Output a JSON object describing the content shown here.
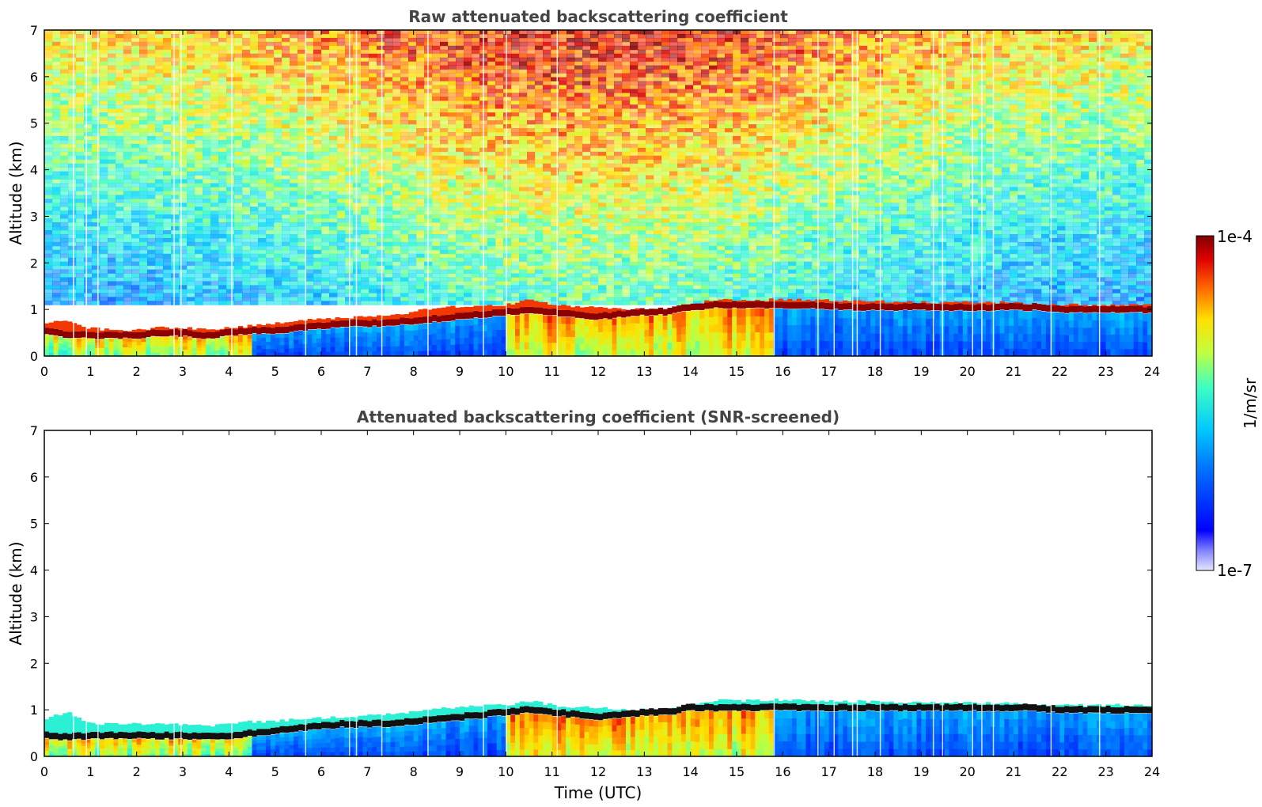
{
  "chart_data": [
    {
      "type": "heatmap",
      "title": "Raw attenuated backscattering coefficient",
      "ylabel": "Altitude (km)",
      "xlabel": "",
      "xlim": [
        0,
        24
      ],
      "ylim": [
        0,
        7
      ],
      "x_ticks": [
        "0",
        "1",
        "2",
        "3",
        "4",
        "5",
        "6",
        "7",
        "8",
        "9",
        "10",
        "11",
        "12",
        "13",
        "14",
        "15",
        "16",
        "17",
        "18",
        "19",
        "20",
        "21",
        "22",
        "23",
        "24"
      ],
      "y_ticks": [
        "0",
        "1",
        "2",
        "3",
        "4",
        "5",
        "6",
        "7"
      ],
      "colormap": "jet",
      "color_scale": "log",
      "layer_top_km": [
        0.7,
        0.75,
        0.6,
        0.55,
        0.55,
        0.62,
        0.6,
        0.58,
        0.6,
        0.65,
        0.7,
        0.78,
        0.8,
        0.82,
        0.85,
        0.85,
        0.95,
        1.05,
        1.05,
        1.1,
        1.1,
        1.2,
        1.1,
        1.05,
        1.05,
        1.0,
        1.0,
        1.0,
        1.1,
        1.2,
        1.2,
        1.2,
        1.22,
        1.2,
        1.2,
        1.18,
        1.18,
        1.15,
        1.15,
        1.15,
        1.15,
        1.15,
        1.15,
        1.1,
        1.1,
        1.1,
        1.1,
        1.1,
        1.1
      ],
      "layer_peak_km": [
        0.55,
        0.45,
        0.45,
        0.45,
        0.45,
        0.5,
        0.5,
        0.45,
        0.5,
        0.55,
        0.55,
        0.6,
        0.65,
        0.7,
        0.7,
        0.72,
        0.75,
        0.8,
        0.85,
        0.9,
        0.95,
        1.0,
        0.95,
        0.9,
        0.85,
        0.9,
        0.95,
        0.95,
        1.05,
        1.1,
        1.1,
        1.1,
        1.1,
        1.1,
        1.08,
        1.05,
        1.05,
        1.05,
        1.05,
        1.05,
        1.05,
        1.05,
        1.05,
        1.05,
        1.0,
        1.0,
        1.0,
        1.0,
        1.0
      ],
      "noise_present": true
    },
    {
      "type": "heatmap",
      "title": "Attenuated backscattering coefficient (SNR-screened)",
      "ylabel": "Altitude (km)",
      "xlabel": "Time (UTC)",
      "xlim": [
        0,
        24
      ],
      "ylim": [
        0,
        7
      ],
      "x_ticks": [
        "0",
        "1",
        "2",
        "3",
        "4",
        "5",
        "6",
        "7",
        "8",
        "9",
        "10",
        "11",
        "12",
        "13",
        "14",
        "15",
        "16",
        "17",
        "18",
        "19",
        "20",
        "21",
        "22",
        "23",
        "24"
      ],
      "y_ticks": [
        "0",
        "1",
        "2",
        "3",
        "4",
        "5",
        "6",
        "7"
      ],
      "colormap": "jet",
      "color_scale": "log",
      "layer_top_km": [
        0.8,
        0.95,
        0.7,
        0.7,
        0.7,
        0.7,
        0.68,
        0.65,
        0.7,
        0.75,
        0.75,
        0.8,
        0.82,
        0.85,
        0.88,
        0.9,
        0.95,
        1.05,
        1.05,
        1.1,
        1.1,
        1.2,
        1.1,
        1.05,
        1.05,
        1.0,
        1.0,
        1.0,
        1.1,
        1.2,
        1.2,
        1.2,
        1.22,
        1.2,
        1.2,
        1.18,
        1.18,
        1.15,
        1.15,
        1.15,
        1.15,
        1.15,
        1.15,
        1.1,
        1.1,
        1.1,
        1.1,
        1.1,
        1.1
      ],
      "layer_peak_km": [
        0.45,
        0.42,
        0.45,
        0.45,
        0.45,
        0.45,
        0.45,
        0.42,
        0.45,
        0.5,
        0.55,
        0.6,
        0.65,
        0.7,
        0.7,
        0.72,
        0.75,
        0.8,
        0.85,
        0.9,
        0.95,
        1.0,
        0.95,
        0.9,
        0.85,
        0.9,
        0.95,
        0.95,
        1.05,
        1.05,
        1.05,
        1.05,
        1.05,
        1.05,
        1.05,
        1.05,
        1.05,
        1.05,
        1.05,
        1.05,
        1.05,
        1.05,
        1.05,
        1.05,
        1.0,
        1.0,
        1.0,
        1.0,
        1.0
      ],
      "noise_present": false
    }
  ],
  "colorbar": {
    "label": "1/m/sr",
    "max_label": "1e-4",
    "min_label": "1e-7",
    "range": [
      1e-07,
      0.0001
    ]
  }
}
